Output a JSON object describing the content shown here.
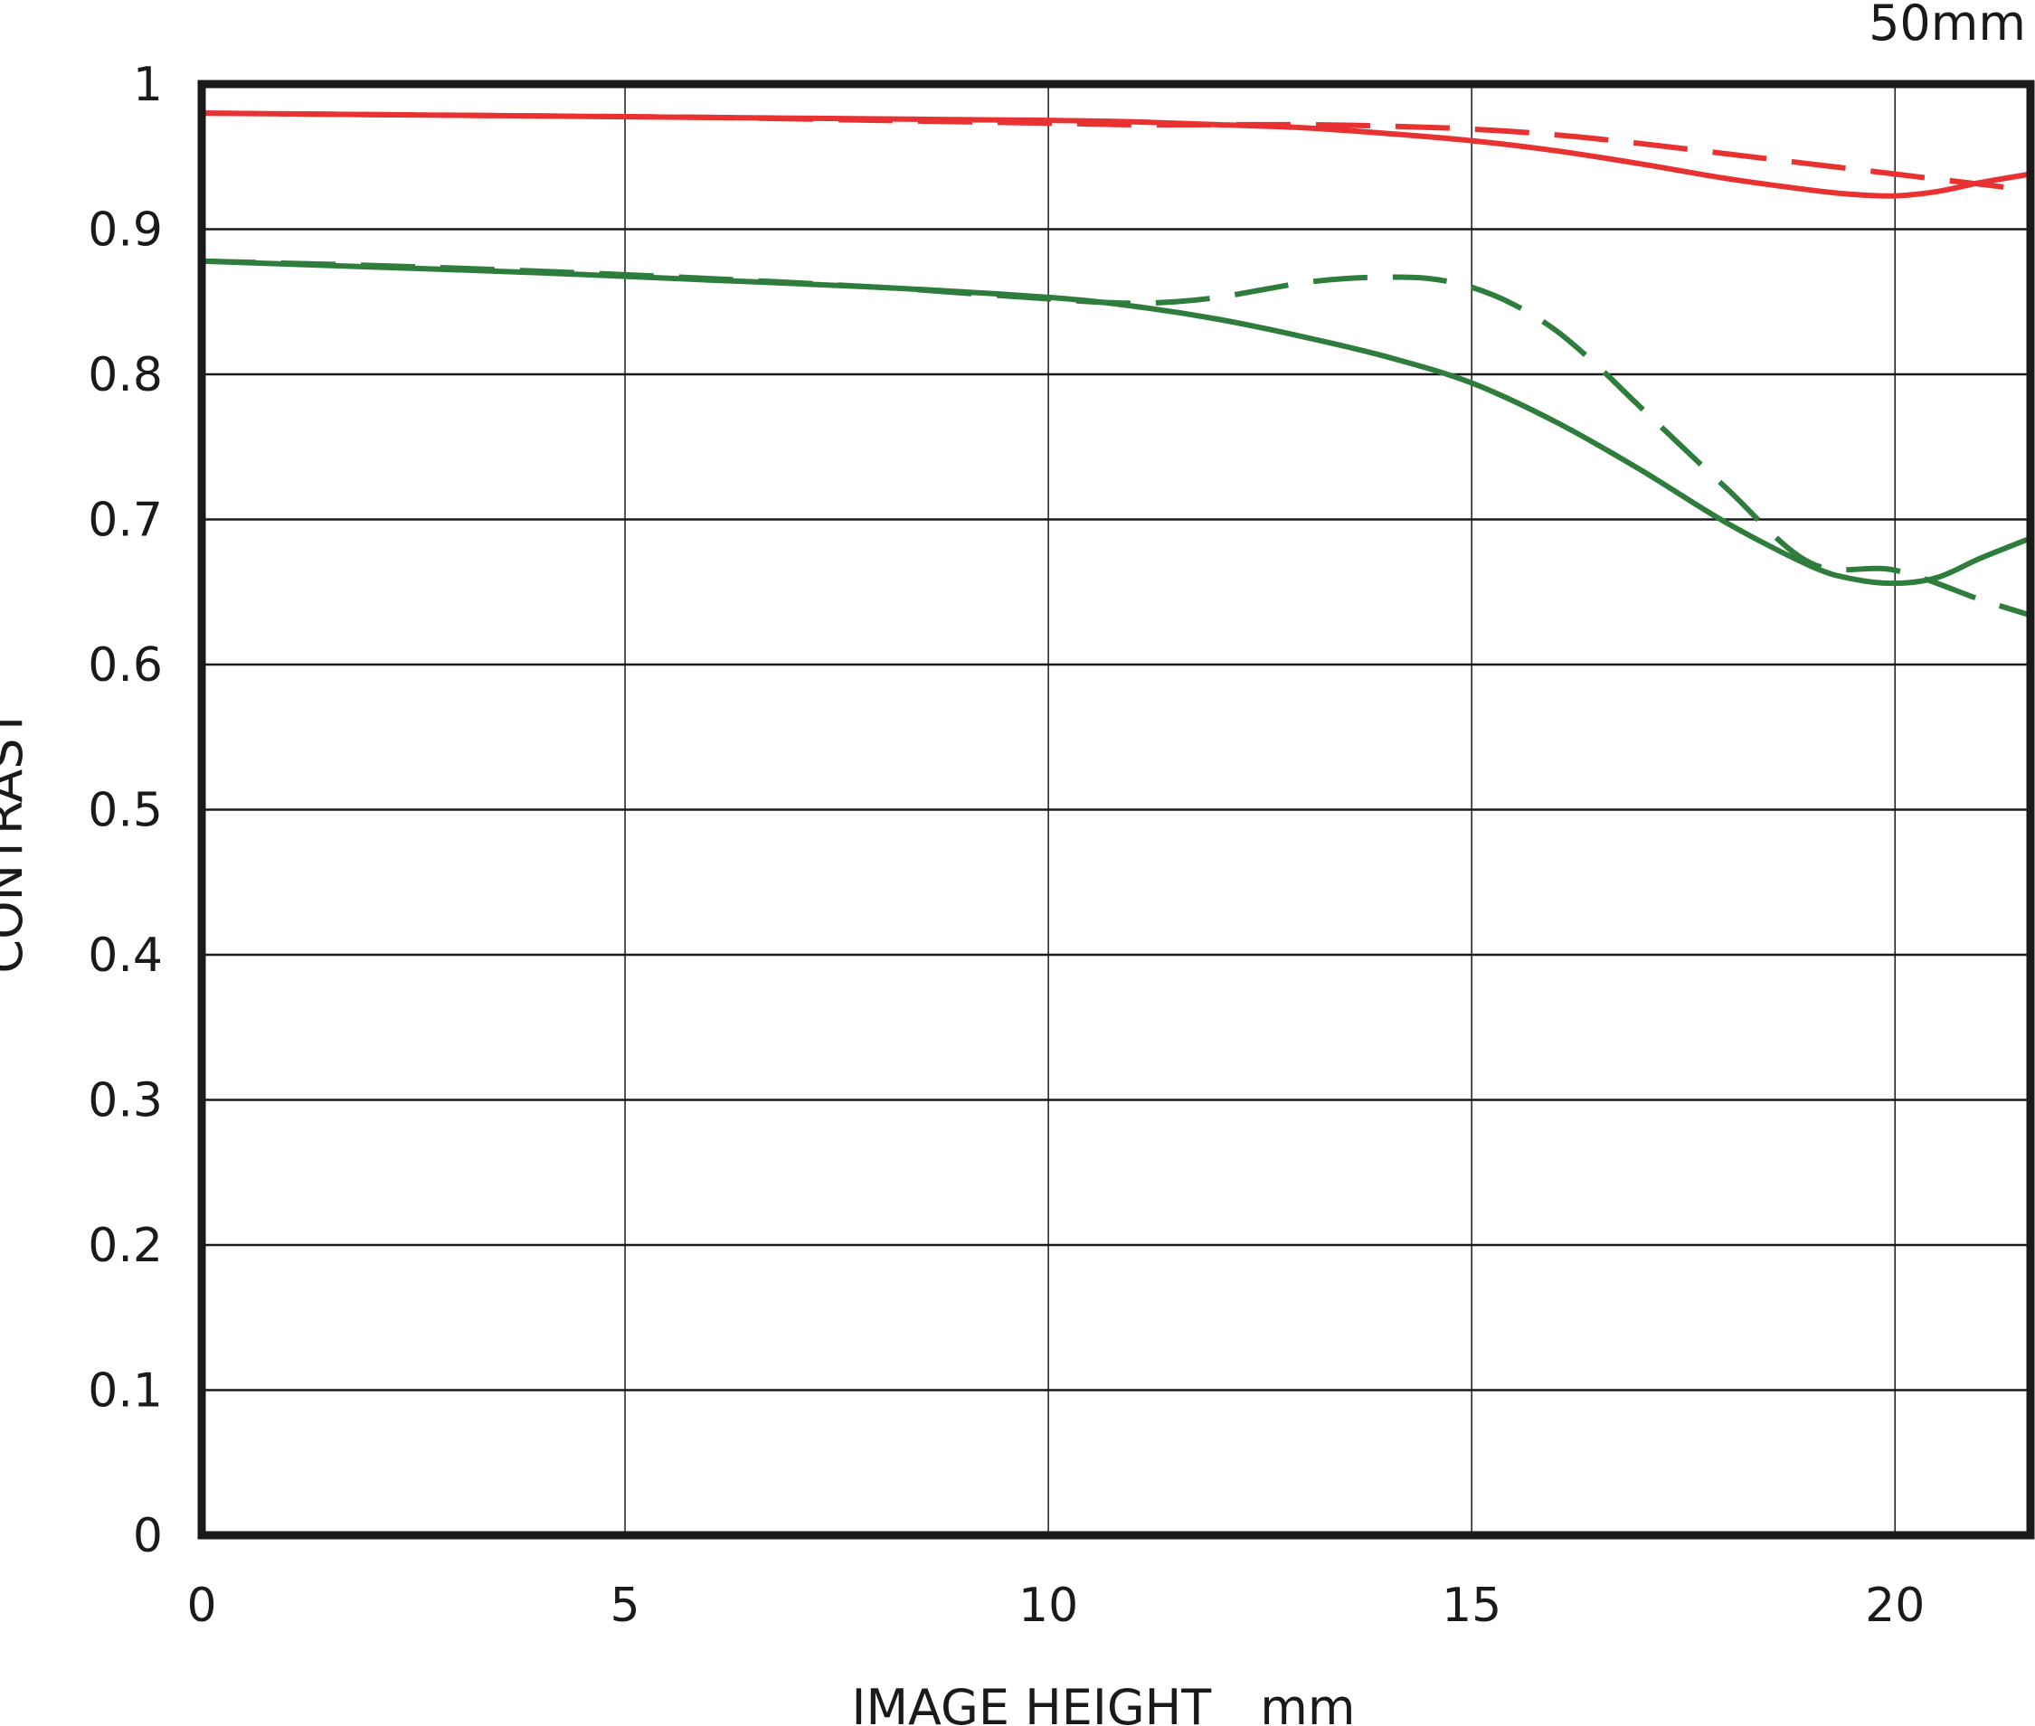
{
  "chart_data": {
    "type": "line",
    "title": "50mm",
    "xlabel": "IMAGE HEIGHT　mm",
    "ylabel": "CONTRAST",
    "xlim": [
      0,
      21.6
    ],
    "ylim": [
      0,
      1
    ],
    "x_ticks": [
      "0",
      "5",
      "10",
      "15",
      "20"
    ],
    "x_tick_values": [
      0,
      5,
      10,
      15,
      20
    ],
    "y_ticks": [
      "0",
      "0.1",
      "0.2",
      "0.3",
      "0.4",
      "0.5",
      "0.6",
      "0.7",
      "0.8",
      "0.9",
      "1"
    ],
    "y_tick_values": [
      0,
      0.1,
      0.2,
      0.3,
      0.4,
      0.5,
      0.6,
      0.7,
      0.8,
      0.9,
      1.0
    ],
    "grid": true,
    "series": [
      {
        "color": "#e83232",
        "dash": "solid",
        "x": [
          0,
          2,
          4,
          6,
          8,
          10,
          11,
          12,
          13,
          14,
          15,
          16,
          17,
          18,
          19,
          19.5,
          20,
          20.5,
          21,
          21.6
        ],
        "y": [
          0.98,
          0.979,
          0.978,
          0.977,
          0.976,
          0.975,
          0.974,
          0.972,
          0.97,
          0.966,
          0.961,
          0.954,
          0.945,
          0.935,
          0.927,
          0.924,
          0.923,
          0.926,
          0.932,
          0.938
        ]
      },
      {
        "color": "#e83232",
        "dash": "dashed",
        "x": [
          0,
          2,
          4,
          6,
          8,
          10,
          11,
          12,
          13,
          14,
          15,
          16,
          17,
          18,
          19,
          20,
          21,
          21.6
        ],
        "y": [
          0.98,
          0.979,
          0.978,
          0.977,
          0.975,
          0.973,
          0.972,
          0.972,
          0.972,
          0.971,
          0.969,
          0.965,
          0.959,
          0.952,
          0.945,
          0.938,
          0.931,
          0.927
        ]
      },
      {
        "color": "#2e7d3c",
        "dash": "solid",
        "x": [
          0,
          2,
          4,
          6,
          8,
          10,
          11,
          12,
          13,
          14,
          15,
          16,
          17,
          18,
          19,
          19.5,
          20,
          20.5,
          21,
          21.6
        ],
        "y": [
          0.878,
          0.874,
          0.87,
          0.865,
          0.86,
          0.853,
          0.847,
          0.838,
          0.826,
          0.812,
          0.794,
          0.767,
          0.734,
          0.698,
          0.668,
          0.659,
          0.656,
          0.66,
          0.673,
          0.687
        ]
      },
      {
        "color": "#2e7d3c",
        "dash": "dashed",
        "x": [
          0,
          2,
          4,
          6,
          8,
          9,
          10,
          10.5,
          11,
          11.5,
          12,
          12.5,
          13,
          13.5,
          14,
          14.5,
          15,
          15.5,
          16,
          16.5,
          17,
          18,
          19,
          20,
          21,
          21.6
        ],
        "y": [
          0.878,
          0.875,
          0.871,
          0.866,
          0.86,
          0.856,
          0.852,
          0.85,
          0.849,
          0.85,
          0.853,
          0.858,
          0.863,
          0.866,
          0.867,
          0.866,
          0.86,
          0.848,
          0.83,
          0.805,
          0.777,
          0.722,
          0.67,
          0.665,
          0.645,
          0.634
        ]
      }
    ]
  }
}
